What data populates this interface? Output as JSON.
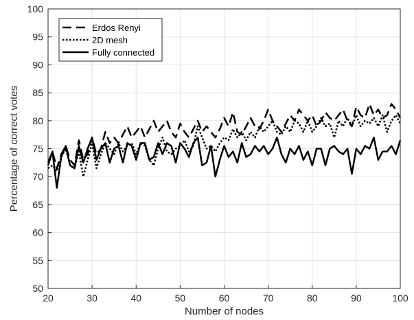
{
  "chart_data": {
    "type": "line",
    "title": "",
    "xlabel": "Number of nodes",
    "ylabel": "Percentage of correct votes",
    "xlim": [
      20,
      100
    ],
    "ylim": [
      50,
      100
    ],
    "xticks": [
      20,
      30,
      40,
      50,
      60,
      70,
      80,
      90,
      100
    ],
    "yticks": [
      50,
      55,
      60,
      65,
      70,
      75,
      80,
      85,
      90,
      95,
      100
    ],
    "grid": true,
    "legend_position": "top-left",
    "x": [
      20,
      21,
      22,
      23,
      24,
      25,
      26,
      27,
      28,
      29,
      30,
      31,
      32,
      33,
      34,
      35,
      36,
      37,
      38,
      39,
      40,
      41,
      42,
      43,
      44,
      45,
      46,
      47,
      48,
      49,
      50,
      51,
      52,
      53,
      54,
      55,
      56,
      57,
      58,
      59,
      60,
      61,
      62,
      63,
      64,
      65,
      66,
      67,
      68,
      69,
      70,
      71,
      72,
      73,
      74,
      75,
      76,
      77,
      78,
      79,
      80,
      81,
      82,
      83,
      84,
      85,
      86,
      87,
      88,
      89,
      90,
      91,
      92,
      93,
      94,
      95,
      96,
      97,
      98,
      99,
      100
    ],
    "series": [
      {
        "name": "Erdos Renyi",
        "style": "dashed",
        "color": "#000000",
        "values": [
          72.5,
          74.5,
          71.5,
          74,
          75.5,
          73,
          72,
          76.5,
          73,
          74,
          77,
          74,
          75,
          78,
          76,
          77,
          76,
          77.5,
          79,
          77,
          78,
          79,
          77,
          78.5,
          80,
          78,
          79,
          80,
          78,
          77,
          79.5,
          78,
          77,
          78.5,
          80,
          78,
          79,
          78,
          77,
          78.5,
          80.5,
          79,
          81.5,
          78,
          77.5,
          79,
          80.5,
          79,
          78.5,
          80,
          82,
          80,
          79,
          78,
          79.5,
          81,
          80,
          82,
          81,
          80,
          81,
          79,
          80,
          81.5,
          80.5,
          80,
          81,
          82,
          80,
          79,
          82.5,
          81,
          80.5,
          83,
          81,
          82,
          80.5,
          81,
          83,
          82,
          80.5
        ]
      },
      {
        "name": "2D mesh",
        "style": "dotted",
        "color": "#000000",
        "values": [
          71.5,
          72,
          71,
          73.5,
          75,
          72,
          71.5,
          74.5,
          70,
          73,
          76,
          71.5,
          74,
          76,
          75,
          74,
          76,
          74.5,
          75.5,
          76,
          74,
          76,
          75.5,
          73,
          72,
          75,
          77,
          74.5,
          74,
          75,
          75.5,
          76.5,
          74.5,
          75.5,
          79,
          77,
          75,
          75.5,
          74.5,
          76,
          77,
          76.5,
          78.5,
          77,
          78,
          76.5,
          78,
          77,
          79,
          78,
          79,
          80,
          78,
          77.5,
          79,
          78,
          80,
          79.5,
          78,
          80,
          78,
          79,
          80.5,
          79,
          79.5,
          77,
          80,
          79,
          80.5,
          79,
          81,
          79,
          80,
          79.5,
          80.5,
          79,
          81,
          78,
          80,
          81,
          79.5
        ]
      },
      {
        "name": "Fully connected",
        "style": "solid",
        "color": "#000000",
        "values": [
          72,
          74.5,
          68,
          73.5,
          75.5,
          72,
          71.5,
          75.5,
          72.5,
          75,
          77,
          73,
          75,
          76,
          72.5,
          75,
          75.5,
          72.5,
          76,
          75.5,
          73,
          76,
          76,
          73,
          73.5,
          76,
          74,
          76,
          75.5,
          72.5,
          76,
          75,
          73.5,
          76,
          77,
          72,
          72.5,
          75.5,
          70,
          73,
          75.5,
          73.5,
          74.5,
          72.5,
          76,
          73.5,
          74,
          75.5,
          74.5,
          75.5,
          74,
          75,
          77,
          74,
          72.5,
          75,
          74,
          75.5,
          73,
          74.5,
          72,
          75,
          75,
          72,
          75,
          75.5,
          74.5,
          74,
          75,
          70.5,
          75,
          74,
          75.5,
          75,
          77,
          73,
          74.5,
          74.5,
          75.5,
          74,
          76.5
        ]
      }
    ]
  }
}
